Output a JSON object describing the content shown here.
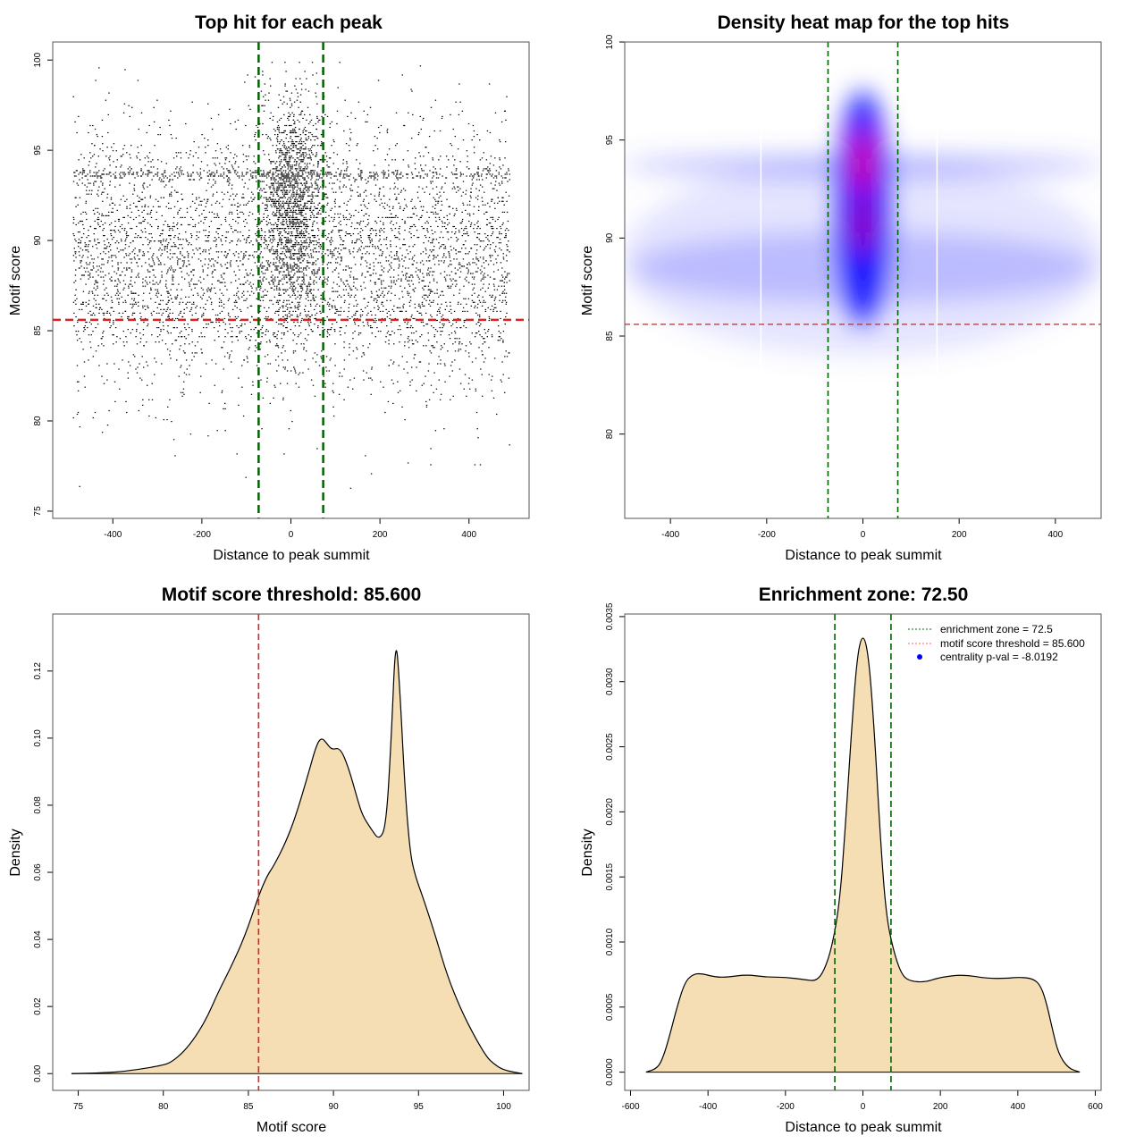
{
  "chart_data": [
    {
      "type": "scatter",
      "title": "Top hit for each peak",
      "xlabel": "Distance to peak summit",
      "ylabel": "Motif score",
      "xlim": [
        -535,
        535
      ],
      "ylim": [
        74.6,
        101
      ],
      "xticks": [
        -400,
        -200,
        0,
        200,
        400
      ],
      "yticks": [
        75,
        80,
        85,
        90,
        95,
        100
      ],
      "threshold_y": 85.6,
      "zone_x": [
        -72.5,
        72.5
      ],
      "threshold_color": "#dd2222",
      "zone_color": "#006400",
      "point_sampling": {
        "n_background": 5200,
        "n_central": 1600,
        "seed": 7,
        "x_range": [
          -490,
          490
        ],
        "background_mean": 89,
        "background_sd": 3.6,
        "band_y": 93.7,
        "central_x_sd": 32,
        "central_mean": 92,
        "central_sd": 3
      }
    },
    {
      "type": "heatmap",
      "title": "Density heat map for the top hits",
      "xlabel": "Distance to peak summit",
      "ylabel": "Motif score",
      "xlim": [
        -495,
        495
      ],
      "ylim": [
        75.7,
        100
      ],
      "xticks": [
        -400,
        -200,
        0,
        200,
        400
      ],
      "yticks": [
        80,
        85,
        90,
        95,
        100
      ],
      "threshold_y": 85.6,
      "zone_x": [
        -72.5,
        72.5
      ],
      "white_lines_x": [
        -212,
        154
      ],
      "blobs": [
        {
          "x": 0,
          "y": 89,
          "sx": 500,
          "sy": 5,
          "intensity": 0.18,
          "color": "#6a6aff"
        },
        {
          "x": 0,
          "y": 93.7,
          "sx": 500,
          "sy": 0.5,
          "intensity": 0.45,
          "color": "#5a5aff"
        },
        {
          "x": 0,
          "y": 88.5,
          "sx": 480,
          "sy": 1.8,
          "intensity": 0.35,
          "color": "#7070ff"
        },
        {
          "x": 0,
          "y": 91.5,
          "sx": 55,
          "sy": 6,
          "intensity": 0.9,
          "color": "#0000ff"
        },
        {
          "x": 0,
          "y": 93.8,
          "sx": 14,
          "sy": 1.6,
          "intensity": 1,
          "color": "#ff0000"
        },
        {
          "x": 0,
          "y": 90.6,
          "sx": 12,
          "sy": 1.4,
          "intensity": 0.85,
          "color": "#dd0022"
        }
      ],
      "threshold_color": "#aa3333",
      "zone_color": "#006400"
    },
    {
      "type": "area",
      "title": "Motif score threshold: 85.600",
      "xlabel": "Motif score",
      "ylabel": "Density",
      "xlim": [
        73.5,
        101.5
      ],
      "ylim": [
        -0.005,
        0.137
      ],
      "xticks": [
        75,
        80,
        85,
        90,
        95,
        100
      ],
      "yticks": [
        0.0,
        0.02,
        0.04,
        0.06,
        0.08,
        0.1,
        0.12
      ],
      "ytick_labels": [
        "0.00",
        "0.02",
        "0.04",
        "0.06",
        "0.08",
        "0.10",
        "0.12"
      ],
      "threshold_x": 85.6,
      "fill": "#f5deb3",
      "threshold_color": "#dd2222",
      "x": [
        74.6,
        77,
        78.5,
        80,
        80.5,
        81.2,
        81.9,
        82.6,
        83.2,
        84,
        84.8,
        85.6,
        86.1,
        86.5,
        87.2,
        87.8,
        88.5,
        89,
        89.3,
        89.6,
        89.9,
        90.4,
        90.9,
        91.4,
        91.7,
        92.2,
        92.7,
        93.1,
        93.4,
        93.66,
        93.9,
        94.2,
        94.5,
        94.8,
        95.3,
        96,
        96.7,
        97.5,
        98.3,
        99,
        99.4,
        100,
        101.1
      ],
      "y": [
        0,
        0.0003,
        0.0012,
        0.0025,
        0.0035,
        0.0065,
        0.011,
        0.017,
        0.024,
        0.032,
        0.041,
        0.053,
        0.059,
        0.062,
        0.069,
        0.077,
        0.089,
        0.098,
        0.1002,
        0.0985,
        0.0965,
        0.0972,
        0.091,
        0.082,
        0.077,
        0.073,
        0.0695,
        0.074,
        0.1,
        0.1315,
        0.115,
        0.085,
        0.066,
        0.059,
        0.052,
        0.041,
        0.029,
        0.019,
        0.011,
        0.005,
        0.003,
        0.001,
        0
      ]
    },
    {
      "type": "area",
      "title": "Enrichment zone: 72.50",
      "xlabel": "Distance to peak summit",
      "ylabel": "Density",
      "xlim": [
        -615,
        615
      ],
      "ylim": [
        -0.00014,
        0.00352
      ],
      "xticks": [
        -600,
        -400,
        -200,
        0,
        200,
        400,
        600
      ],
      "yticks": [
        0,
        0.0005,
        0.001,
        0.0015,
        0.002,
        0.0025,
        0.003,
        0.0035
      ],
      "ytick_labels": [
        "0.0000",
        "0.0005",
        "0.0010",
        "0.0015",
        "0.0020",
        "0.0025",
        "0.0030",
        "0.0035"
      ],
      "zone_x": [
        -72.5,
        72.5
      ],
      "fill": "#f5deb3",
      "zone_color": "#006400",
      "x": [
        -560,
        -530,
        -515,
        -500,
        -480,
        -460,
        -440,
        -420,
        -380,
        -350,
        -300,
        -250,
        -200,
        -150,
        -120,
        -100,
        -80,
        -60,
        -45,
        -30,
        -15,
        0,
        15,
        30,
        45,
        60,
        80,
        100,
        120,
        160,
        200,
        260,
        320,
        370,
        400,
        440,
        460,
        475,
        490,
        505,
        530,
        560
      ],
      "y": [
        0,
        3e-05,
        0.00012,
        0.00027,
        0.0005,
        0.00069,
        0.00075,
        0.00076,
        0.00073,
        0.00073,
        0.00075,
        0.00073,
        0.00073,
        0.00071,
        0.0007,
        0.00078,
        0.00096,
        0.0013,
        0.0019,
        0.0026,
        0.0032,
        0.00338,
        0.0032,
        0.0026,
        0.0018,
        0.0012,
        0.00092,
        0.00075,
        0.0007,
        0.00069,
        0.00073,
        0.00075,
        0.00072,
        0.00072,
        0.00073,
        0.00072,
        0.00066,
        0.00052,
        0.00032,
        0.00014,
        3e-05,
        0
      ],
      "legend": {
        "placement": "top-right",
        "entries": [
          {
            "label": "enrichment zone = 72.5",
            "style": "dotted-line",
            "color": "#006400"
          },
          {
            "label": "motif score threshold = 85.600",
            "style": "dotted-line",
            "color": "#ff6666"
          },
          {
            "label": "centrality p-val = -8.0192",
            "style": "dot",
            "color": "#0000ff"
          }
        ]
      }
    }
  ]
}
